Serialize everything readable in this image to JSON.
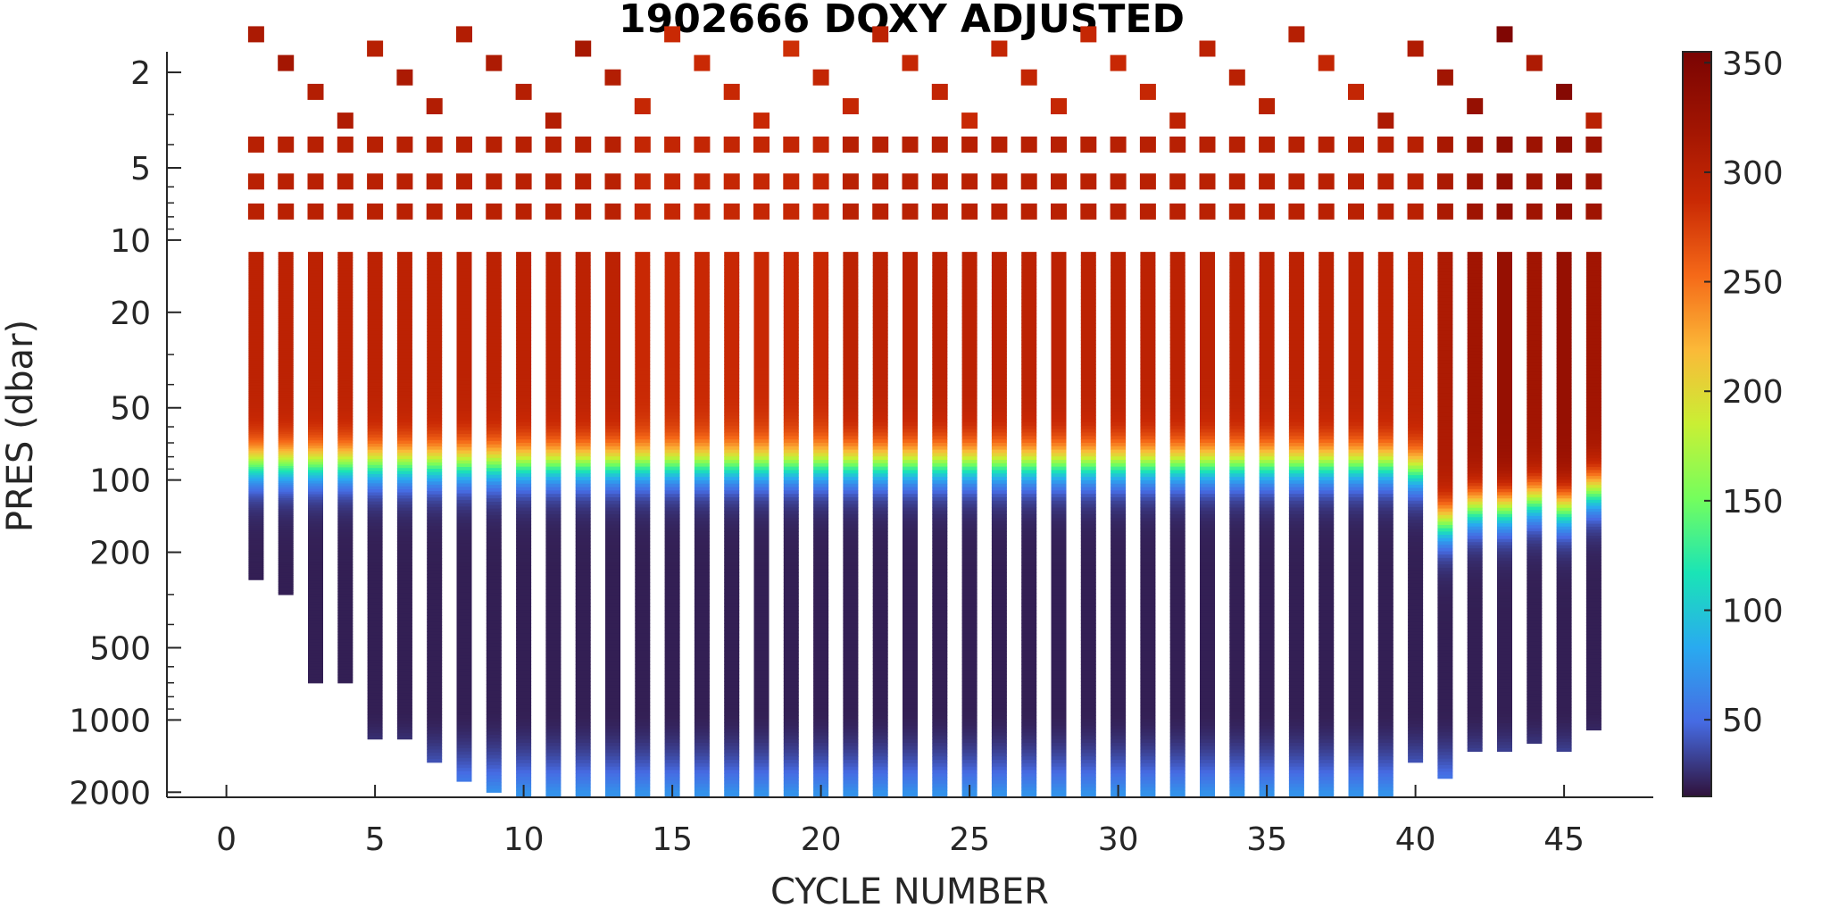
{
  "chart_data": {
    "type": "heatmap",
    "title": "1902666  DOXY ADJUSTED",
    "xlabel": "CYCLE NUMBER",
    "ylabel": "PRES (dbar)",
    "xlim": [
      -2,
      48
    ],
    "ylim": [
      1.6,
      2100
    ],
    "y_scale": "log",
    "y_reversed": true,
    "x_ticks": [
      0,
      5,
      10,
      15,
      20,
      25,
      30,
      35,
      40,
      45
    ],
    "y_ticks": [
      2,
      5,
      10,
      20,
      50,
      100,
      200,
      500,
      1000,
      2000
    ],
    "colorbar": {
      "colormap": "turbo",
      "range": [
        15,
        355
      ],
      "ticks": [
        50,
        100,
        150,
        200,
        250,
        300,
        350
      ]
    },
    "cycles": [
      1,
      2,
      3,
      4,
      5,
      6,
      7,
      8,
      9,
      10,
      11,
      12,
      13,
      14,
      15,
      16,
      17,
      18,
      19,
      20,
      21,
      22,
      23,
      24,
      25,
      26,
      27,
      28,
      29,
      30,
      31,
      32,
      33,
      34,
      35,
      36,
      37,
      38,
      39,
      40,
      41,
      42,
      43,
      44,
      45,
      46
    ],
    "max_pressure_dbar": [
      260,
      300,
      700,
      700,
      1200,
      1200,
      1500,
      1800,
      2000,
      2100,
      2100,
      2100,
      2100,
      2100,
      2100,
      2100,
      2100,
      2100,
      2100,
      2100,
      2100,
      2100,
      2100,
      2100,
      2100,
      2100,
      2100,
      2100,
      2100,
      2100,
      2100,
      2100,
      2100,
      2100,
      2100,
      2100,
      2100,
      2100,
      2100,
      1500,
      1750,
      1350,
      1350,
      1250,
      1350,
      1100
    ],
    "surface_doxy_umol_kg": [
      312,
      318,
      305,
      308,
      302,
      312,
      306,
      306,
      310,
      304,
      305,
      315,
      305,
      290,
      287,
      287,
      289,
      288,
      284,
      292,
      290,
      298,
      290,
      293,
      288,
      292,
      292,
      290,
      290,
      288,
      290,
      296,
      298,
      300,
      300,
      304,
      292,
      292,
      310,
      308,
      320,
      330,
      350,
      310,
      345,
      300
    ],
    "subsurface_doxy_umol_kg": [
      298,
      298,
      298,
      298,
      298,
      298,
      298,
      298,
      298,
      298,
      298,
      298,
      298,
      288,
      288,
      288,
      288,
      288,
      288,
      288,
      298,
      298,
      298,
      298,
      298,
      298,
      298,
      298,
      298,
      298,
      298,
      298,
      298,
      298,
      298,
      298,
      298,
      298,
      298,
      298,
      310,
      320,
      330,
      320,
      330,
      320
    ],
    "oxycline_depth_dbar": [
      85,
      85,
      85,
      85,
      85,
      85,
      85,
      85,
      85,
      85,
      85,
      85,
      85,
      85,
      85,
      85,
      85,
      85,
      85,
      85,
      85,
      85,
      85,
      85,
      85,
      85,
      85,
      85,
      85,
      85,
      85,
      85,
      85,
      85,
      85,
      85,
      85,
      85,
      85,
      90,
      150,
      130,
      130,
      120,
      130,
      110
    ],
    "deep_doxy_umol_kg": [
      20,
      20,
      20,
      20,
      20,
      20,
      20,
      20,
      20,
      20,
      20,
      20,
      20,
      20,
      20,
      20,
      20,
      20,
      20,
      20,
      20,
      20,
      20,
      20,
      20,
      20,
      20,
      20,
      20,
      20,
      20,
      20,
      20,
      20,
      20,
      20,
      20,
      20,
      20,
      20,
      20,
      20,
      20,
      20,
      20,
      20
    ],
    "bottom_doxy_umol_kg": 70
  }
}
